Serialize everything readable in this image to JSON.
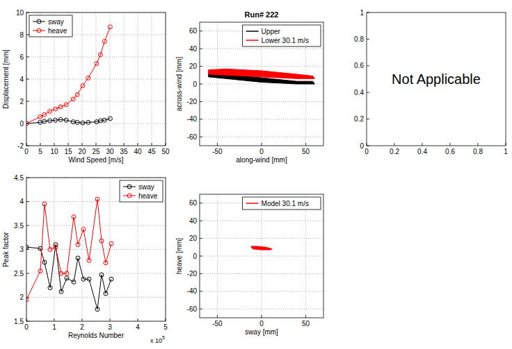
{
  "chart_data": [
    {
      "type": "line",
      "xlabel": "Wind Speed [m/s]",
      "ylabel": "Displacement [mm]",
      "x": [
        0,
        4.9,
        6.4,
        8.4,
        10.4,
        12.3,
        14.3,
        16.8,
        18.3,
        20.2,
        22.2,
        25.2,
        26.6,
        28.1,
        30.1
      ],
      "series": [
        {
          "name": "sway",
          "color": "#000000",
          "marker": "circle",
          "values": [
            0,
            0.1,
            0.2,
            0.25,
            0.3,
            0.35,
            0.3,
            0.15,
            0.1,
            0.05,
            0.1,
            0.15,
            0.25,
            0.3,
            0.45
          ]
        },
        {
          "name": "heave",
          "color": "#ff0000",
          "marker": "circle",
          "values": [
            0,
            0.6,
            0.8,
            1.1,
            1.3,
            1.5,
            1.7,
            2.2,
            2.6,
            3.4,
            4.1,
            5.4,
            6.2,
            7.4,
            8.7
          ]
        }
      ],
      "xlim": [
        0,
        50
      ],
      "xticks": [
        0,
        5,
        10,
        15,
        20,
        25,
        30,
        35,
        40,
        45,
        50
      ],
      "ylim": [
        -2,
        10
      ],
      "yticks": [
        -2,
        0,
        2,
        4,
        6,
        8,
        10
      ],
      "grid": true,
      "legend": "upper left"
    },
    {
      "type": "orbit",
      "title": "Run# 222",
      "xlabel": "along-wind [mm]",
      "ylabel": "across-wind [mm]",
      "series": [
        {
          "name": "Upper",
          "color": "#000000",
          "x": [
            -60,
            -40,
            -20,
            0,
            20,
            40,
            58,
            60,
            40,
            20,
            0,
            -20,
            -40,
            -60
          ],
          "values": [
            13,
            11,
            9,
            7,
            5,
            3,
            3,
            0,
            0,
            1,
            2,
            4,
            6,
            8
          ]
        },
        {
          "name": "Lower 30.1 m/s",
          "color": "#ff0000",
          "x": [
            -60,
            -40,
            -20,
            0,
            20,
            40,
            58,
            60,
            40,
            20,
            0,
            -20,
            -40,
            -60
          ],
          "values": [
            16,
            17,
            16,
            15,
            13,
            11,
            9,
            6,
            6,
            7,
            8,
            9,
            10,
            11
          ]
        }
      ],
      "xlim": [
        -70,
        70
      ],
      "xticks": [
        -50,
        0,
        50
      ],
      "ylim": [
        -70,
        70
      ],
      "yticks": [
        -60,
        -40,
        -20,
        0,
        20,
        40,
        60
      ],
      "grid": true,
      "legend": "upper right"
    },
    {
      "type": "empty",
      "annotations": [
        "Not Applicable"
      ],
      "xlim": [
        0,
        1
      ],
      "xticks": [
        0,
        0.2,
        0.4,
        0.6,
        0.8,
        1
      ],
      "ylim": [
        0,
        1
      ],
      "yticks": [
        0,
        0.2,
        0.4,
        0.6,
        0.8,
        1
      ],
      "grid": false
    },
    {
      "type": "line",
      "xlabel": "Reynolds Number",
      "ylabel": "Peak factor",
      "annotations": [
        {
          "text": "x 10",
          "superscript": "5"
        }
      ],
      "x": [
        0,
        0.5,
        0.65,
        0.85,
        1.05,
        1.25,
        1.45,
        1.7,
        1.85,
        2.05,
        2.25,
        2.55,
        2.7,
        2.85,
        3.05
      ],
      "series": [
        {
          "name": "sway",
          "color": "#000000",
          "marker": "circle",
          "values": [
            3.05,
            3.02,
            2.73,
            2.2,
            3.1,
            2.12,
            2.4,
            2.32,
            2.82,
            2.38,
            2.38,
            1.75,
            2.47,
            2.08,
            2.38
          ]
        },
        {
          "name": "heave",
          "color": "#ff0000",
          "marker": "circle",
          "values": [
            1.95,
            2.55,
            3.95,
            3.0,
            3.05,
            2.5,
            2.5,
            3.68,
            3.1,
            3.42,
            2.77,
            4.05,
            3.18,
            2.72,
            3.12
          ]
        }
      ],
      "xlim": [
        0,
        5
      ],
      "xticks": [
        0,
        1,
        2,
        3,
        4,
        5
      ],
      "ylim": [
        1.5,
        4.5
      ],
      "yticks": [
        1.5,
        2,
        2.5,
        3,
        3.5,
        4,
        4.5
      ],
      "grid": true,
      "legend": "upper right"
    },
    {
      "type": "orbit",
      "xlabel": "sway [mm]",
      "ylabel": "heave [mm]",
      "series": [
        {
          "name": "Model 30.1 m/s",
          "color": "#ff0000",
          "x": [
            -12,
            -5,
            5,
            12,
            10,
            0,
            -10
          ],
          "values": [
            11,
            11,
            10,
            8,
            7,
            7,
            8
          ]
        }
      ],
      "xlim": [
        -70,
        70
      ],
      "xticks": [
        -50,
        0,
        50
      ],
      "ylim": [
        -70,
        70
      ],
      "yticks": [
        -60,
        -40,
        -20,
        0,
        20,
        40,
        60
      ],
      "grid": true,
      "legend": "upper right"
    }
  ]
}
